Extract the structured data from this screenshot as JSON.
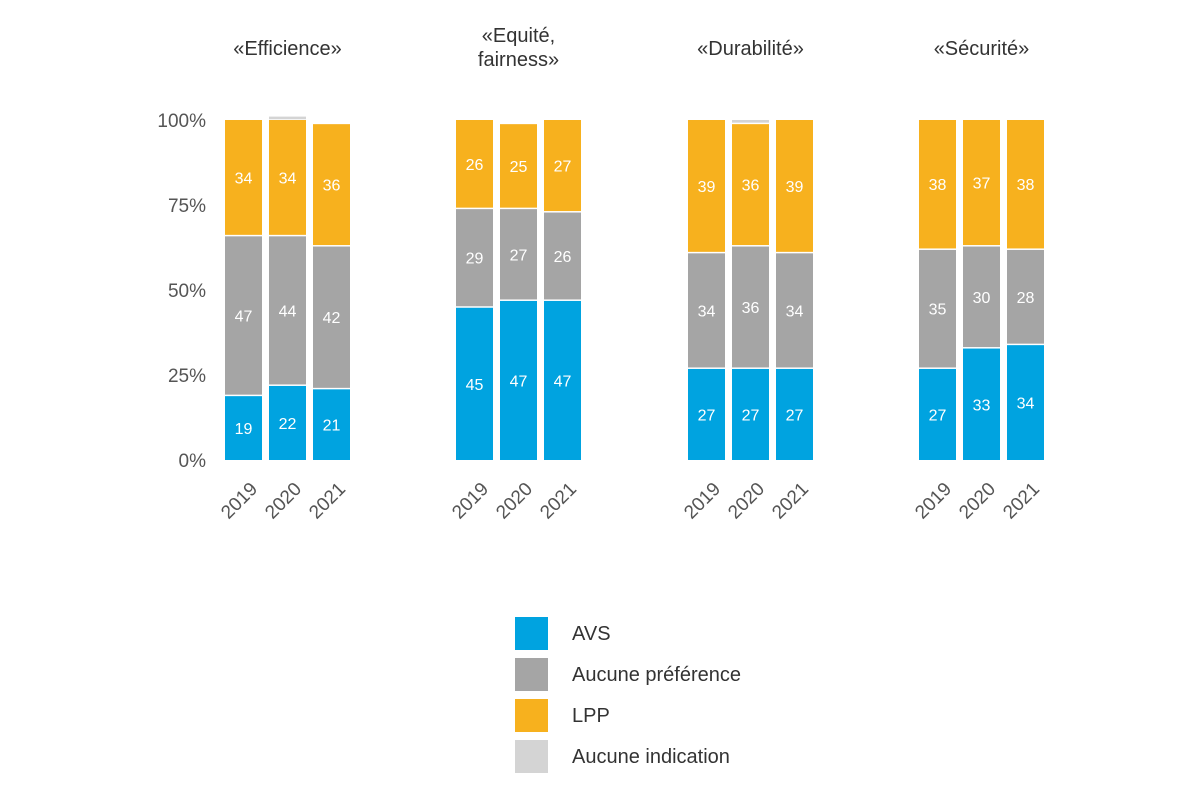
{
  "chart_data": {
    "type": "bar",
    "stacked": true,
    "normalized": true,
    "ylim": [
      0,
      100
    ],
    "yticks": [
      0,
      25,
      50,
      75,
      100
    ],
    "ytick_labels": [
      "0%",
      "25%",
      "50%",
      "75%",
      "100%"
    ],
    "categories": [
      "2019",
      "2020",
      "2021"
    ],
    "series_names": [
      "AVS",
      "Aucune préférence",
      "LPP",
      "Aucune indication"
    ],
    "colors": [
      "#00a3e0",
      "#a5a5a5",
      "#f7b11e",
      "#d4d4d4"
    ],
    "panels": [
      {
        "title": [
          "«Efficience»"
        ],
        "series": [
          {
            "name": "AVS",
            "values": [
              19,
              22,
              21
            ]
          },
          {
            "name": "Aucune préférence",
            "values": [
              47,
              44,
              42
            ]
          },
          {
            "name": "LPP",
            "values": [
              34,
              34,
              36
            ]
          },
          {
            "name": "Aucune indication",
            "values": [
              0,
              1,
              0
            ]
          }
        ]
      },
      {
        "title": [
          "«Equité,",
          "fairness»"
        ],
        "series": [
          {
            "name": "AVS",
            "values": [
              45,
              47,
              47
            ]
          },
          {
            "name": "Aucune préférence",
            "values": [
              29,
              27,
              26
            ]
          },
          {
            "name": "LPP",
            "values": [
              26,
              25,
              27
            ]
          },
          {
            "name": "Aucune indication",
            "values": [
              0,
              0,
              0
            ]
          }
        ]
      },
      {
        "title": [
          "«Durabilité»"
        ],
        "series": [
          {
            "name": "AVS",
            "values": [
              27,
              27,
              27
            ]
          },
          {
            "name": "Aucune préférence",
            "values": [
              34,
              36,
              34
            ]
          },
          {
            "name": "LPP",
            "values": [
              39,
              36,
              39
            ]
          },
          {
            "name": "Aucune indication",
            "values": [
              0,
              1,
              0
            ]
          }
        ]
      },
      {
        "title": [
          "«Sécurité»"
        ],
        "series": [
          {
            "name": "AVS",
            "values": [
              27,
              33,
              34
            ]
          },
          {
            "name": "Aucune préférence",
            "values": [
              35,
              30,
              28
            ]
          },
          {
            "name": "LPP",
            "values": [
              38,
              37,
              38
            ]
          },
          {
            "name": "Aucune indication",
            "values": [
              0,
              0,
              0
            ]
          }
        ]
      }
    ],
    "legend": {
      "position": "bottom-center",
      "entries": [
        "AVS",
        "Aucune préférence",
        "LPP",
        "Aucune indication"
      ]
    }
  }
}
